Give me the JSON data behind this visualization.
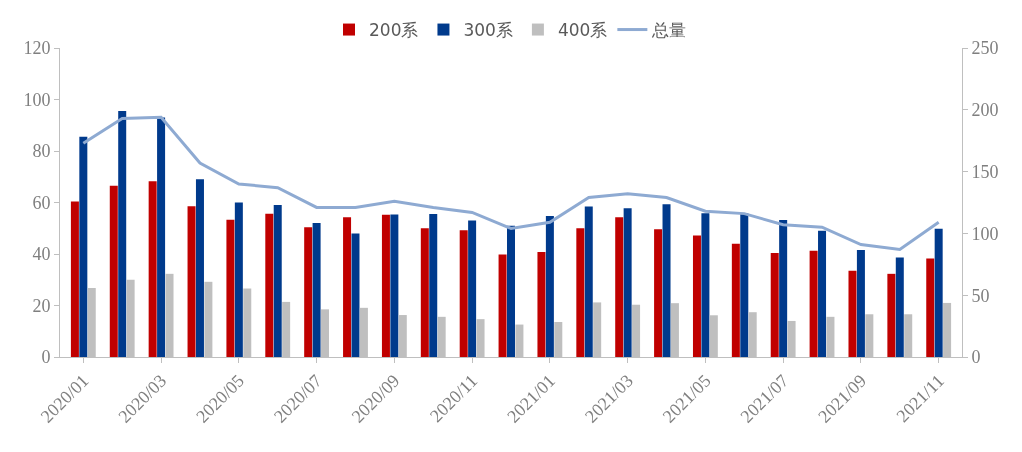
{
  "chart_data": {
    "type": "bar",
    "categories": [
      "2020/01",
      null,
      "2020/03",
      null,
      "2020/05",
      null,
      "2020/07",
      null,
      "2020/09",
      null,
      "2020/11",
      null,
      "2021/01",
      null,
      "2021/03",
      null,
      "2021/05",
      null,
      "2021/07",
      null,
      "2021/09",
      null,
      "2021/11"
    ],
    "series": [
      {
        "name": "200系",
        "color": "#c00000",
        "values": [
          60.4,
          66.5,
          68.3,
          58.5,
          53.3,
          55.6,
          50.4,
          54.3,
          55.2,
          50,
          49.2,
          39.8,
          40.8,
          50,
          54.3,
          49.6,
          47.2,
          44,
          40.4,
          41.3,
          33.5,
          32.3,
          38.3
        ]
      },
      {
        "name": "300系",
        "color": "#003a8c",
        "values": [
          85.5,
          95.5,
          93,
          69,
          60,
          59,
          52,
          48,
          55.3,
          55.5,
          53,
          51,
          54.8,
          58.4,
          57.8,
          59.3,
          55.8,
          55.8,
          53.2,
          49,
          41.6,
          38.6,
          49.8
        ]
      },
      {
        "name": "400系",
        "color": "#bfbfbf",
        "values": [
          26.8,
          30,
          32.3,
          29.2,
          26.6,
          21.4,
          18.5,
          19.1,
          16.3,
          15.6,
          14.7,
          12.6,
          13.6,
          21.2,
          20.3,
          20.9,
          16.2,
          17.4,
          14,
          15.6,
          16.6,
          16.6,
          21
        ]
      },
      {
        "name": "总量",
        "type": "line",
        "axis": "y2",
        "color": "#8eaad2",
        "values": [
          173,
          193,
          194,
          157,
          140,
          137,
          121,
          121,
          126,
          121,
          117,
          104,
          109,
          129,
          132,
          129,
          118,
          116,
          107,
          105,
          91,
          87,
          109
        ]
      }
    ],
    "ylim": [
      0,
      120
    ],
    "yticks": [
      0,
      20,
      40,
      60,
      80,
      100,
      120
    ],
    "y2lim": [
      0,
      250
    ],
    "y2ticks": [
      0,
      50,
      100,
      150,
      200,
      250
    ],
    "legend": "top",
    "marker": "none"
  }
}
